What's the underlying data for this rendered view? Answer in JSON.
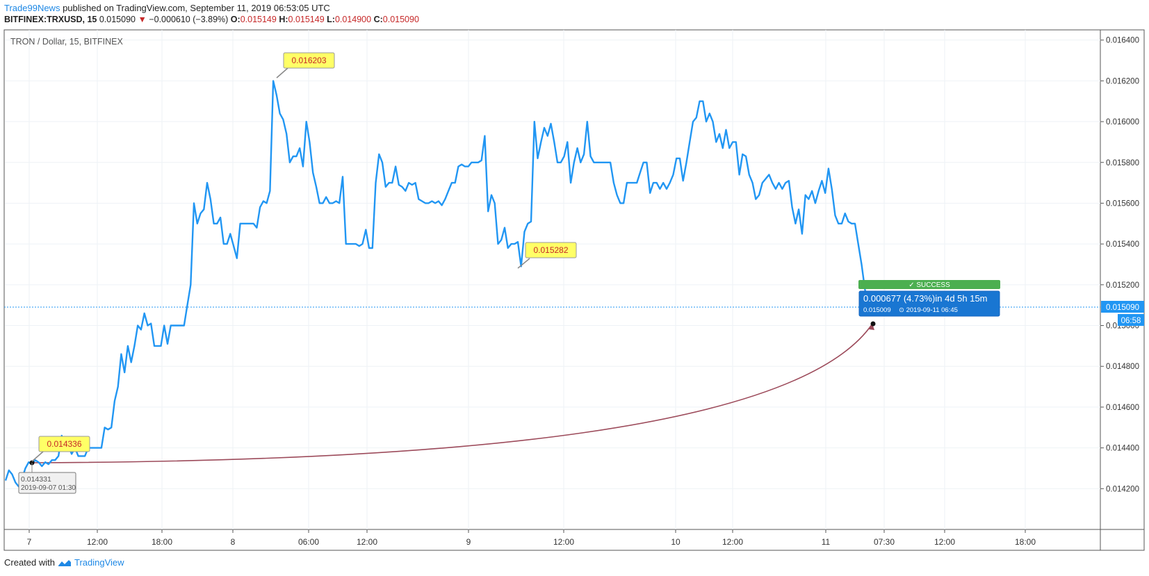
{
  "header": {
    "brand": "Trade99News",
    "published": "published on TradingView.com, September 11, 2019 06:53:05 UTC",
    "symbol": "BITFINEX:TRXUSD, 15",
    "last": "0.015090",
    "arrow": "▼",
    "change": "−0.000610 (−3.89%)",
    "o_label": "O:",
    "o_value": "0.015149",
    "h_label": "H:",
    "h_value": "0.015149",
    "l_label": "L:",
    "l_value": "0.014900",
    "c_label": "C:",
    "c_value": "0.015090"
  },
  "footer": {
    "created": "Created with",
    "brand": "TradingView"
  },
  "colors": {
    "line": "#2196f3",
    "arc": "#9c4a5a",
    "label_fill": "#ffff66",
    "success": "#4caf50",
    "info": "#1976d2",
    "grid": "#eef2f6"
  },
  "chart_data": {
    "type": "line",
    "title": "TRON / Dollar, 15, BITFINEX",
    "ylim": [
      0.014,
      0.01645
    ],
    "y_ticks": [
      "0.016400",
      "0.016200",
      "0.016000",
      "0.015800",
      "0.015600",
      "0.015400",
      "0.015200",
      "0.015000",
      "0.014800",
      "0.014600",
      "0.014400",
      "0.014200"
    ],
    "x_ticks": [
      "7",
      "12:00",
      "18:00",
      "8",
      "06:00",
      "12:00",
      "9",
      "12:00",
      "10",
      "12:00",
      "11",
      "07:30",
      "12:00",
      "18:00"
    ],
    "last_price_label": "0.015090",
    "last_time_label": "06:58",
    "annotations": [
      {
        "text": "0.016203"
      },
      {
        "text": "0.015282"
      },
      {
        "text": "0.014336"
      }
    ],
    "start_box": {
      "price": "0.014331",
      "time": "2019-09-07 01:30"
    },
    "success_label": "✓ SUCCESS",
    "result_box": {
      "main": "0.000677 (4.73%)in 4d 5h 15m",
      "price": "0.015009",
      "time": "⊙ 2019-09-11  06:45"
    },
    "series": [
      {
        "values": [
          0.01424,
          0.01429,
          0.01427,
          0.01423,
          0.01421,
          0.01425,
          0.0143,
          0.01433,
          0.01432,
          0.01434,
          0.01433,
          0.01431,
          0.01433,
          0.01432,
          0.01434,
          0.01434,
          0.01436,
          0.01446,
          0.01439,
          0.01441,
          0.01437,
          0.0144,
          0.01436,
          0.01436,
          0.01436,
          0.0144,
          0.0144,
          0.0144,
          0.0144,
          0.0144,
          0.0145,
          0.01449,
          0.0145,
          0.01463,
          0.0147,
          0.01486,
          0.01477,
          0.0149,
          0.01482,
          0.0149,
          0.015,
          0.01498,
          0.01506,
          0.015,
          0.01501,
          0.0149,
          0.0149,
          0.0149,
          0.015,
          0.01491,
          0.015,
          0.015,
          0.015,
          0.015,
          0.015,
          0.0151,
          0.0152,
          0.0156,
          0.0155,
          0.01555,
          0.01557,
          0.0157,
          0.01562,
          0.0155,
          0.0155,
          0.01553,
          0.0154,
          0.0154,
          0.01545,
          0.01539,
          0.01533,
          0.0155,
          0.0155,
          0.0155,
          0.0155,
          0.0155,
          0.01548,
          0.01558,
          0.01561,
          0.0156,
          0.01566,
          0.0162,
          0.01613,
          0.01604,
          0.01601,
          0.01594,
          0.0158,
          0.01583,
          0.01583,
          0.01587,
          0.01578,
          0.016,
          0.0159,
          0.01575,
          0.01568,
          0.0156,
          0.0156,
          0.01563,
          0.0156,
          0.0156,
          0.01561,
          0.0156,
          0.01573,
          0.0154,
          0.0154,
          0.0154,
          0.0154,
          0.01539,
          0.0154,
          0.01547,
          0.01538,
          0.01538,
          0.0157,
          0.01584,
          0.0158,
          0.01568,
          0.0157,
          0.0157,
          0.01578,
          0.01569,
          0.01568,
          0.01566,
          0.0157,
          0.01569,
          0.0157,
          0.01562,
          0.01561,
          0.0156,
          0.0156,
          0.01561,
          0.0156,
          0.01561,
          0.01559,
          0.01562,
          0.01566,
          0.0157,
          0.0157,
          0.01578,
          0.01579,
          0.01578,
          0.01578,
          0.0158,
          0.0158,
          0.0158,
          0.01581,
          0.01593,
          0.01556,
          0.01564,
          0.0156,
          0.0154,
          0.01542,
          0.01548,
          0.01538,
          0.0154,
          0.0154,
          0.01541,
          0.01529,
          0.01546,
          0.0155,
          0.01551,
          0.016,
          0.01582,
          0.0159,
          0.01597,
          0.01593,
          0.01599,
          0.0159,
          0.0158,
          0.0158,
          0.01583,
          0.0159,
          0.0157,
          0.0158,
          0.01587,
          0.0158,
          0.01584,
          0.016,
          0.01583,
          0.0158,
          0.0158,
          0.0158,
          0.0158,
          0.0158,
          0.0158,
          0.0157,
          0.01564,
          0.0156,
          0.0156,
          0.0157,
          0.0157,
          0.0157,
          0.0157,
          0.01575,
          0.0158,
          0.0158,
          0.01565,
          0.0157,
          0.0157,
          0.01567,
          0.0157,
          0.01567,
          0.0157,
          0.01574,
          0.01582,
          0.01582,
          0.01571,
          0.0158,
          0.0159,
          0.016,
          0.01602,
          0.0161,
          0.0161,
          0.016,
          0.01604,
          0.016,
          0.0159,
          0.01594,
          0.01587,
          0.01596,
          0.01587,
          0.0159,
          0.0159,
          0.01574,
          0.01584,
          0.01583,
          0.01574,
          0.0157,
          0.01562,
          0.01564,
          0.0157,
          0.01572,
          0.01574,
          0.0157,
          0.01567,
          0.0157,
          0.01567,
          0.0157,
          0.01571,
          0.01558,
          0.0155,
          0.01557,
          0.01545,
          0.01564,
          0.01562,
          0.01566,
          0.0156,
          0.01566,
          0.01571,
          0.01565,
          0.01577,
          0.01567,
          0.01554,
          0.0155,
          0.0155,
          0.01555,
          0.01551,
          0.0155,
          0.0155,
          0.0154,
          0.0153,
          0.01518,
          0.01509
        ]
      }
    ]
  }
}
